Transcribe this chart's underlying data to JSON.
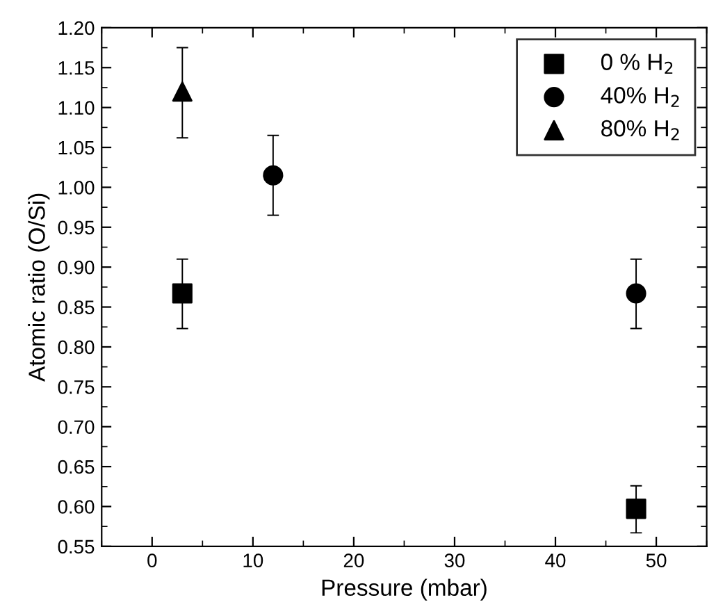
{
  "chart_data": {
    "type": "scatter",
    "xlabel": "Pressure (mbar)",
    "ylabel": "Atomic ratio (O/Si)",
    "xlim": [
      -5,
      55
    ],
    "xticks": [
      0,
      10,
      20,
      30,
      40,
      50
    ],
    "ylim": [
      0.55,
      1.2
    ],
    "yticks": [
      {
        "value": 0.55,
        "label": "0.55"
      },
      {
        "value": 0.6,
        "label": "0.60"
      },
      {
        "value": 0.65,
        "label": "0.65"
      },
      {
        "value": 0.7,
        "label": "0.70"
      },
      {
        "value": 0.75,
        "label": "0.75"
      },
      {
        "value": 0.8,
        "label": "0.80"
      },
      {
        "value": 0.85,
        "label": "0.85"
      },
      {
        "value": 0.9,
        "label": "0.90"
      },
      {
        "value": 0.95,
        "label": "0.95"
      },
      {
        "value": 1.0,
        "label": "1.00"
      },
      {
        "value": 1.05,
        "label": "1.05"
      },
      {
        "value": 1.1,
        "label": "1.10"
      },
      {
        "value": 1.15,
        "label": "1.15"
      },
      {
        "value": 1.2,
        "label": "1.20"
      }
    ],
    "grid": false,
    "legend": "top right",
    "series": [
      {
        "name": "0 % H$_{2}$",
        "color": "#000000",
        "marker": "square",
        "x": [
          3,
          48
        ],
        "values": [
          0.867,
          0.597
        ],
        "errors": [
          [
            0.823,
            0.91
          ],
          [
            0.567,
            0.626
          ]
        ]
      },
      {
        "name": "40% H$_{2}$",
        "color": "#000000",
        "marker": "circle",
        "x": [
          12,
          48
        ],
        "values": [
          1.015,
          0.867
        ],
        "errors": [
          [
            0.965,
            1.065
          ],
          [
            0.823,
            0.91
          ]
        ]
      },
      {
        "name": "80% H$_{2}$",
        "color": "#000000",
        "marker": "triangle",
        "x": [
          3
        ],
        "values": [
          1.12
        ],
        "errors": [
          [
            1.062,
            1.175
          ]
        ]
      }
    ]
  }
}
